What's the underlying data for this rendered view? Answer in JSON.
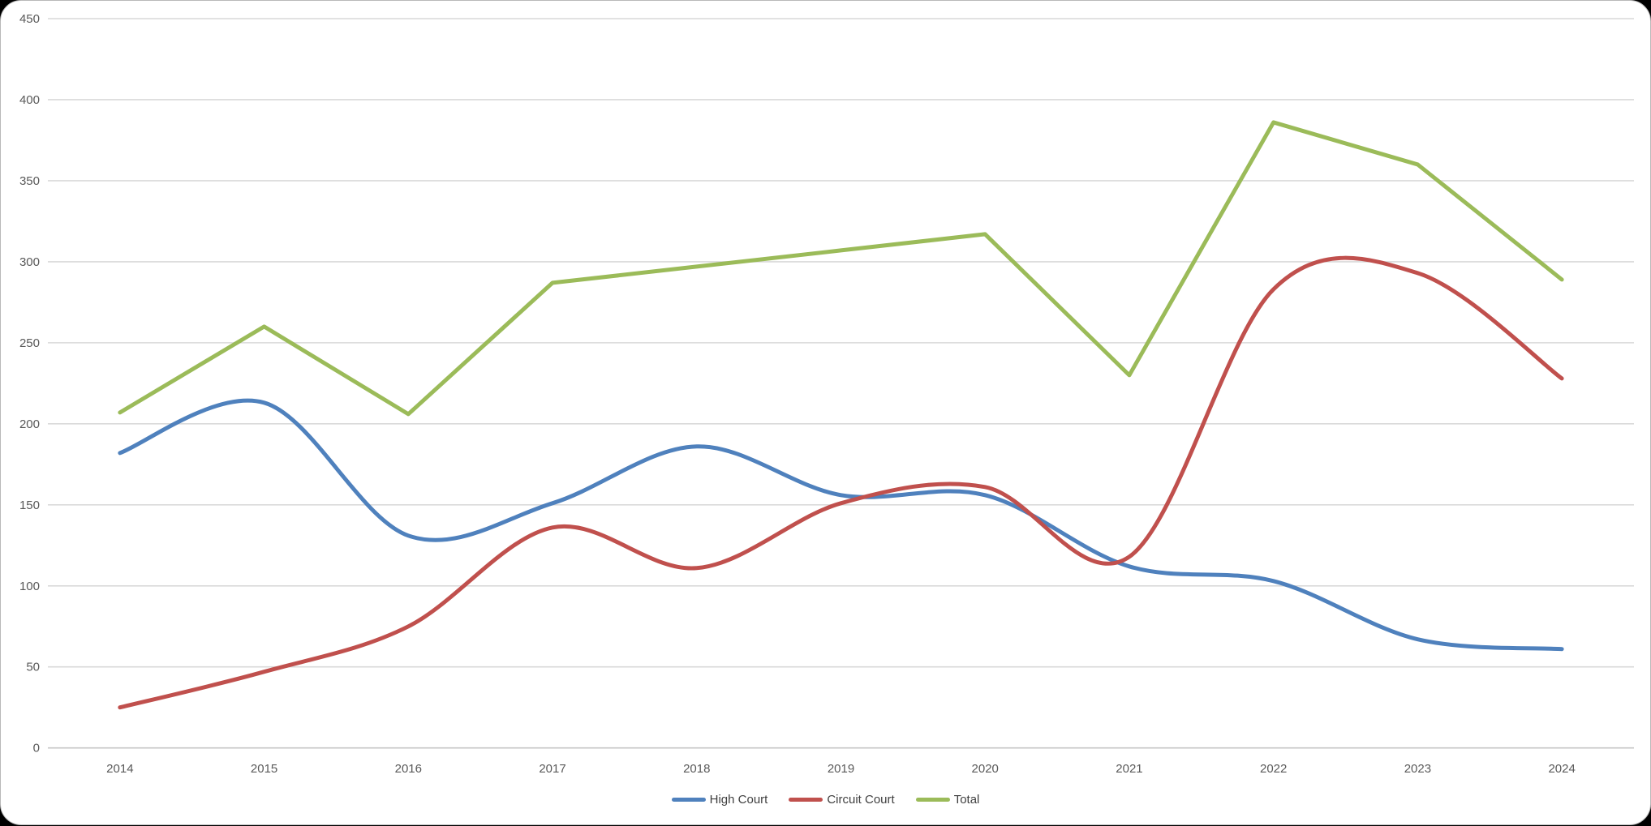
{
  "chart_data": {
    "type": "line",
    "title": "",
    "categories": [
      "2014",
      "2015",
      "2016",
      "2017",
      "2018",
      "2019",
      "2020",
      "2021",
      "2022",
      "2023",
      "2024"
    ],
    "series": [
      {
        "name": "High Court",
        "color": "#4F81BD",
        "smooth": true,
        "values": [
          182,
          213,
          131,
          151,
          186,
          156,
          156,
          112,
          103,
          67,
          61
        ]
      },
      {
        "name": "Circuit Court",
        "color": "#C0504D",
        "smooth": true,
        "values": [
          25,
          47,
          75,
          136,
          111,
          151,
          161,
          118,
          283,
          293,
          228
        ]
      },
      {
        "name": "Total",
        "color": "#9BBB59",
        "smooth": false,
        "values": [
          207,
          260,
          206,
          287,
          297,
          307,
          317,
          230,
          386,
          360,
          289
        ]
      }
    ],
    "xlabel": "",
    "ylabel": "",
    "ylim": [
      0,
      450
    ],
    "ytick_step": 50,
    "yticklabels": [
      "0",
      "50",
      "100",
      "150",
      "200",
      "250",
      "300",
      "350",
      "400",
      "450"
    ],
    "grid": true,
    "grid_color": "#D9D9D9",
    "zero_line_color": "#C6C6C6",
    "axis_label_color": "#595959",
    "legend_position": "bottom",
    "legend_text_color": "#3f3f3f",
    "background_color": "#FFFFFF",
    "line_width": 5
  }
}
